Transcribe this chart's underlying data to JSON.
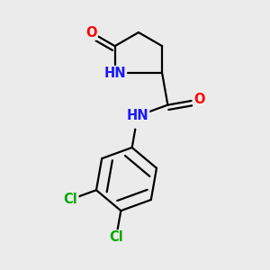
{
  "bg_color": "#ebebeb",
  "atom_colors": {
    "C": "#000000",
    "N": "#1919ff",
    "O": "#ff0000",
    "Cl": "#00aa00",
    "H": "#777777"
  },
  "bond_color": "#000000",
  "bond_lw": 1.6,
  "dbl_sep": 0.018,
  "font_size": 10.5
}
